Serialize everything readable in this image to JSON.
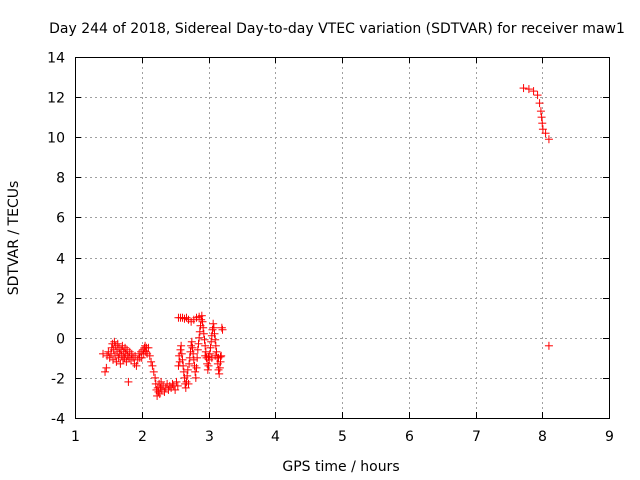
{
  "chart_data": {
    "type": "scatter",
    "title": "Day 244 of 2018, Sidereal Day-to-day VTEC variation (SDTVAR) for receiver maw1",
    "xlabel": "GPS time / hours",
    "ylabel": "SDTVAR / TECUs",
    "xlim": [
      1,
      9
    ],
    "ylim": [
      -4,
      14
    ],
    "xticks": [
      1,
      2,
      3,
      4,
      5,
      6,
      7,
      8,
      9
    ],
    "yticks": [
      -4,
      -2,
      0,
      2,
      4,
      6,
      8,
      10,
      12,
      14
    ],
    "grid": true,
    "marker": "+",
    "color": "#ff0000",
    "series": [
      {
        "name": "SDTVAR",
        "points": [
          [
            1.42,
            -0.8
          ],
          [
            1.45,
            -1.7
          ],
          [
            1.47,
            -1.5
          ],
          [
            1.48,
            -0.9
          ],
          [
            1.5,
            -0.7
          ],
          [
            1.52,
            -1.0
          ],
          [
            1.54,
            -0.8
          ],
          [
            1.55,
            -0.5
          ],
          [
            1.56,
            -0.3
          ],
          [
            1.57,
            -1.1
          ],
          [
            1.58,
            -0.6
          ],
          [
            1.59,
            -0.2
          ],
          [
            1.6,
            -0.9
          ],
          [
            1.61,
            -0.4
          ],
          [
            1.62,
            -1.2
          ],
          [
            1.63,
            -0.7
          ],
          [
            1.64,
            -0.3
          ],
          [
            1.65,
            -1.0
          ],
          [
            1.66,
            -0.5
          ],
          [
            1.67,
            -0.8
          ],
          [
            1.68,
            -1.3
          ],
          [
            1.69,
            -0.6
          ],
          [
            1.7,
            -0.9
          ],
          [
            1.71,
            -0.4
          ],
          [
            1.72,
            -1.1
          ],
          [
            1.73,
            -0.7
          ],
          [
            1.74,
            -1.0
          ],
          [
            1.75,
            -0.5
          ],
          [
            1.76,
            -0.8
          ],
          [
            1.77,
            -1.2
          ],
          [
            1.78,
            -0.6
          ],
          [
            1.79,
            -0.9
          ],
          [
            1.8,
            -2.2
          ],
          [
            1.81,
            -1.0
          ],
          [
            1.82,
            -0.7
          ],
          [
            1.84,
            -1.1
          ],
          [
            1.85,
            -0.8
          ],
          [
            1.87,
            -1.0
          ],
          [
            1.89,
            -1.3
          ],
          [
            1.9,
            -0.9
          ],
          [
            1.92,
            -1.4
          ],
          [
            1.94,
            -1.1
          ],
          [
            1.96,
            -0.8
          ],
          [
            1.97,
            -1.0
          ],
          [
            1.99,
            -0.7
          ],
          [
            2.0,
            -1.0
          ],
          [
            2.02,
            -0.6
          ],
          [
            2.03,
            -0.8
          ],
          [
            2.04,
            -0.5
          ],
          [
            2.05,
            -0.4
          ],
          [
            2.06,
            -0.7
          ],
          [
            2.07,
            -0.5
          ],
          [
            2.08,
            -0.8
          ],
          [
            2.1,
            -0.5
          ],
          [
            2.12,
            -0.9
          ],
          [
            2.14,
            -1.2
          ],
          [
            2.16,
            -1.4
          ],
          [
            2.18,
            -1.7
          ],
          [
            2.2,
            -2.0
          ],
          [
            2.21,
            -2.3
          ],
          [
            2.22,
            -2.6
          ],
          [
            2.23,
            -2.9
          ],
          [
            2.24,
            -2.5
          ],
          [
            2.25,
            -2.7
          ],
          [
            2.26,
            -2.3
          ],
          [
            2.27,
            -2.8
          ],
          [
            2.28,
            -2.5
          ],
          [
            2.29,
            -2.2
          ],
          [
            2.3,
            -2.6
          ],
          [
            2.32,
            -2.4
          ],
          [
            2.34,
            -2.7
          ],
          [
            2.36,
            -2.5
          ],
          [
            2.38,
            -2.3
          ],
          [
            2.4,
            -2.6
          ],
          [
            2.42,
            -2.4
          ],
          [
            2.44,
            -2.5
          ],
          [
            2.46,
            -2.3
          ],
          [
            2.48,
            -2.4
          ],
          [
            2.5,
            -2.6
          ],
          [
            2.52,
            -2.2
          ],
          [
            2.54,
            -2.4
          ],
          [
            2.55,
            -1.4
          ],
          [
            2.56,
            -0.9
          ],
          [
            2.57,
            -1.2
          ],
          [
            2.58,
            -0.6
          ],
          [
            2.59,
            -0.4
          ],
          [
            2.6,
            -0.8
          ],
          [
            2.61,
            -1.1
          ],
          [
            2.62,
            -1.4
          ],
          [
            2.63,
            -1.7
          ],
          [
            2.64,
            -2.0
          ],
          [
            2.65,
            -2.3
          ],
          [
            2.66,
            -2.5
          ],
          [
            2.67,
            -2.2
          ],
          [
            2.68,
            -1.9
          ],
          [
            2.69,
            -1.6
          ],
          [
            2.7,
            -2.3
          ],
          [
            2.71,
            -1.3
          ],
          [
            2.72,
            -1.0
          ],
          [
            2.73,
            -0.7
          ],
          [
            2.74,
            -0.4
          ],
          [
            2.75,
            -0.2
          ],
          [
            2.76,
            -0.5
          ],
          [
            2.77,
            -0.8
          ],
          [
            2.78,
            -1.1
          ],
          [
            2.79,
            -1.4
          ],
          [
            2.8,
            -1.7
          ],
          [
            2.81,
            -2.0
          ],
          [
            2.82,
            -1.5
          ],
          [
            2.83,
            -1.0
          ],
          [
            2.84,
            -0.6
          ],
          [
            2.85,
            -0.3
          ],
          [
            2.86,
            0.0
          ],
          [
            2.87,
            0.3
          ],
          [
            2.88,
            0.6
          ],
          [
            2.89,
            0.9
          ],
          [
            2.9,
            1.1
          ],
          [
            2.91,
            0.8
          ],
          [
            2.92,
            0.5
          ],
          [
            2.93,
            0.2
          ],
          [
            2.94,
            -0.1
          ],
          [
            2.95,
            -0.4
          ],
          [
            2.96,
            -0.7
          ],
          [
            2.97,
            -1.0
          ],
          [
            2.98,
            -1.3
          ],
          [
            2.99,
            -1.6
          ],
          [
            3.0,
            -1.4
          ],
          [
            3.01,
            -1.1
          ],
          [
            3.02,
            -0.8
          ],
          [
            3.03,
            -0.5
          ],
          [
            3.04,
            -0.2
          ],
          [
            3.05,
            0.1
          ],
          [
            3.06,
            0.4
          ],
          [
            3.07,
            0.7
          ],
          [
            3.08,
            0.5
          ],
          [
            3.09,
            0.2
          ],
          [
            3.1,
            -0.1
          ],
          [
            3.11,
            -0.4
          ],
          [
            3.12,
            -0.7
          ],
          [
            3.13,
            -1.0
          ],
          [
            3.14,
            -1.3
          ],
          [
            3.15,
            -1.6
          ],
          [
            3.16,
            -1.8
          ],
          [
            3.17,
            -1.5
          ],
          [
            3.18,
            -1.2
          ],
          [
            3.19,
            -0.9
          ],
          [
            3.2,
            0.5
          ],
          [
            3.21,
            0.4
          ],
          [
            2.55,
            1.0
          ],
          [
            2.58,
            1.0
          ],
          [
            2.61,
            1.0
          ],
          [
            2.64,
            0.95
          ],
          [
            2.67,
            1.0
          ],
          [
            2.7,
            0.9
          ],
          [
            2.74,
            0.8
          ],
          [
            2.78,
            0.9
          ],
          [
            2.82,
            1.0
          ],
          [
            2.86,
            1.05
          ],
          [
            2.95,
            -0.9
          ],
          [
            3.0,
            -0.95
          ],
          [
            3.05,
            -1.0
          ],
          [
            3.1,
            -0.9
          ],
          [
            3.15,
            -1.0
          ],
          [
            3.18,
            -0.95
          ],
          [
            7.72,
            12.45
          ],
          [
            7.8,
            12.4
          ],
          [
            7.87,
            12.3
          ],
          [
            7.93,
            12.1
          ],
          [
            7.96,
            11.7
          ],
          [
            7.98,
            11.3
          ],
          [
            7.99,
            11.0
          ],
          [
            8.0,
            10.7
          ],
          [
            8.01,
            10.4
          ],
          [
            8.05,
            10.2
          ],
          [
            8.1,
            9.9
          ],
          [
            8.1,
            -0.4
          ]
        ]
      }
    ]
  }
}
